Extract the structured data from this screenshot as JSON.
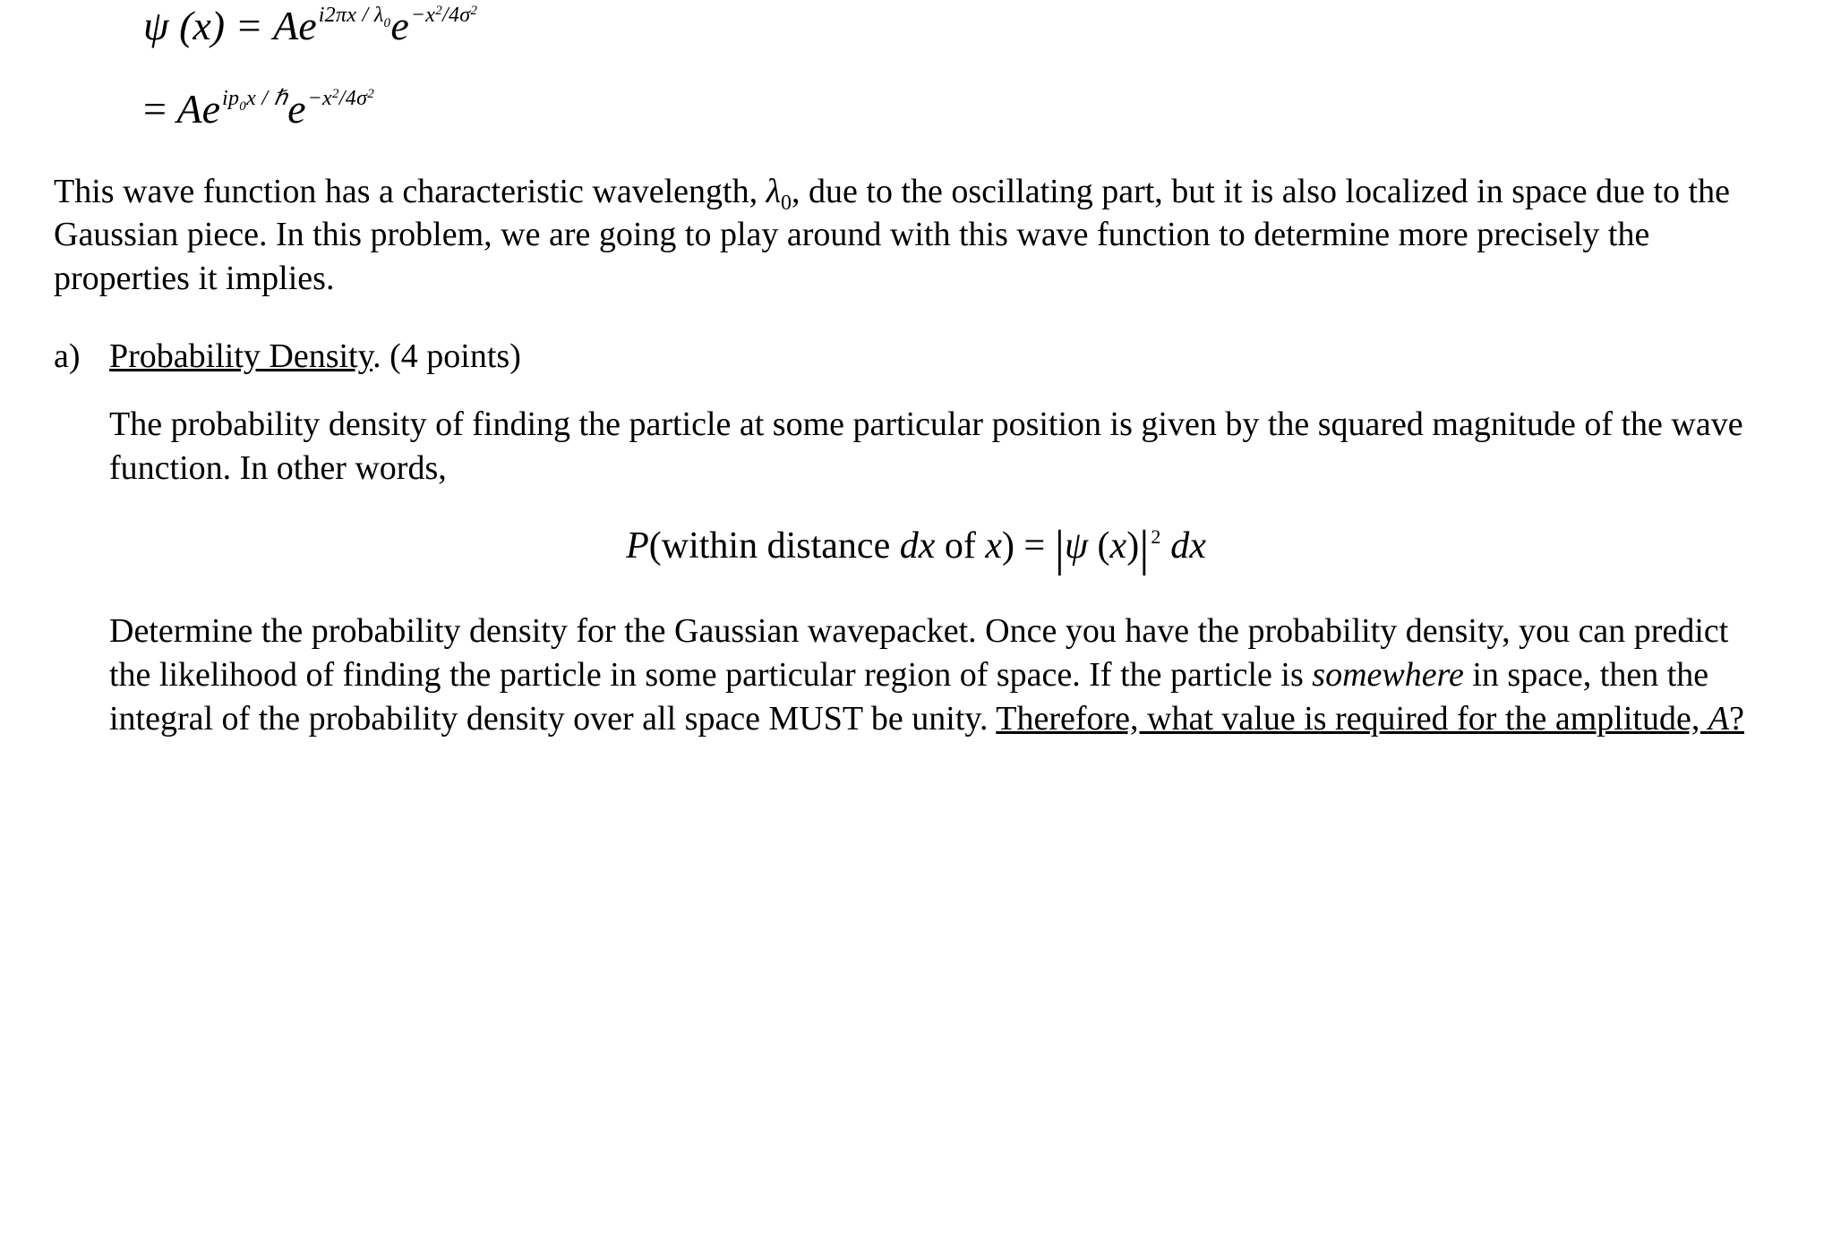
{
  "equations": {
    "line1_lhs": "ψ (x) = ",
    "line1_A": "A",
    "line1_e1": "e",
    "line1_sup1": "i2πx / λ",
    "line1_sup1_sub": "0",
    "line1_e2": "e",
    "line1_sup2_a": "−x",
    "line1_sup2_b": "2",
    "line1_sup2_c": "/4σ",
    "line1_sup2_d": "2",
    "line2_eq": "= ",
    "line2_A": "A",
    "line2_e1": "e",
    "line2_sup1_a": "ip",
    "line2_sup1_sub": "0",
    "line2_sup1_b": "x / ℏ",
    "line2_e2": "e",
    "line2_sup2_a": "−x",
    "line2_sup2_b": "2",
    "line2_sup2_c": "/4σ",
    "line2_sup2_d": "2"
  },
  "para1_a": "This wave function has a characteristic wavelength, ",
  "para1_lambda": "λ",
  "para1_lambda_sub": "0",
  "para1_b": ", due to the oscillating part, but it is also localized in space due to the Gaussian piece. In this problem, we are going to play around with this wave function to determine more precisely the properties it implies.",
  "part_a": {
    "label": "a)",
    "title": "Probability Density",
    "points": ". (4 points)"
  },
  "para2": "The probability density of finding the particle at some particular position is given by the squared magnitude of the wave function. In other words,",
  "center_eq": {
    "P": "P",
    "paren_l": "(",
    "within": "within distance ",
    "dx": "dx",
    "ofx": " of ",
    "x": "x",
    "paren_r": ")",
    "eq": " = ",
    "bar_l": "|",
    "psi": "ψ ",
    "px_l": "(",
    "px_x": "x",
    "px_r": ")",
    "bar_r": "|",
    "sq": "2",
    "sp_dx": " dx"
  },
  "para3_a": "Determine the probability density for the Gaussian wavepacket. Once you have the probability density, you can predict the likelihood of finding the particle in some particular region of space. If the particle is ",
  "para3_somewhere": "somewhere",
  "para3_b": " in space, then the integral of the probability density over all space MUST be unity. ",
  "para3_c": "Therefore, what value is required for the amplitude, ",
  "para3_A": "A",
  "para3_d": "?"
}
